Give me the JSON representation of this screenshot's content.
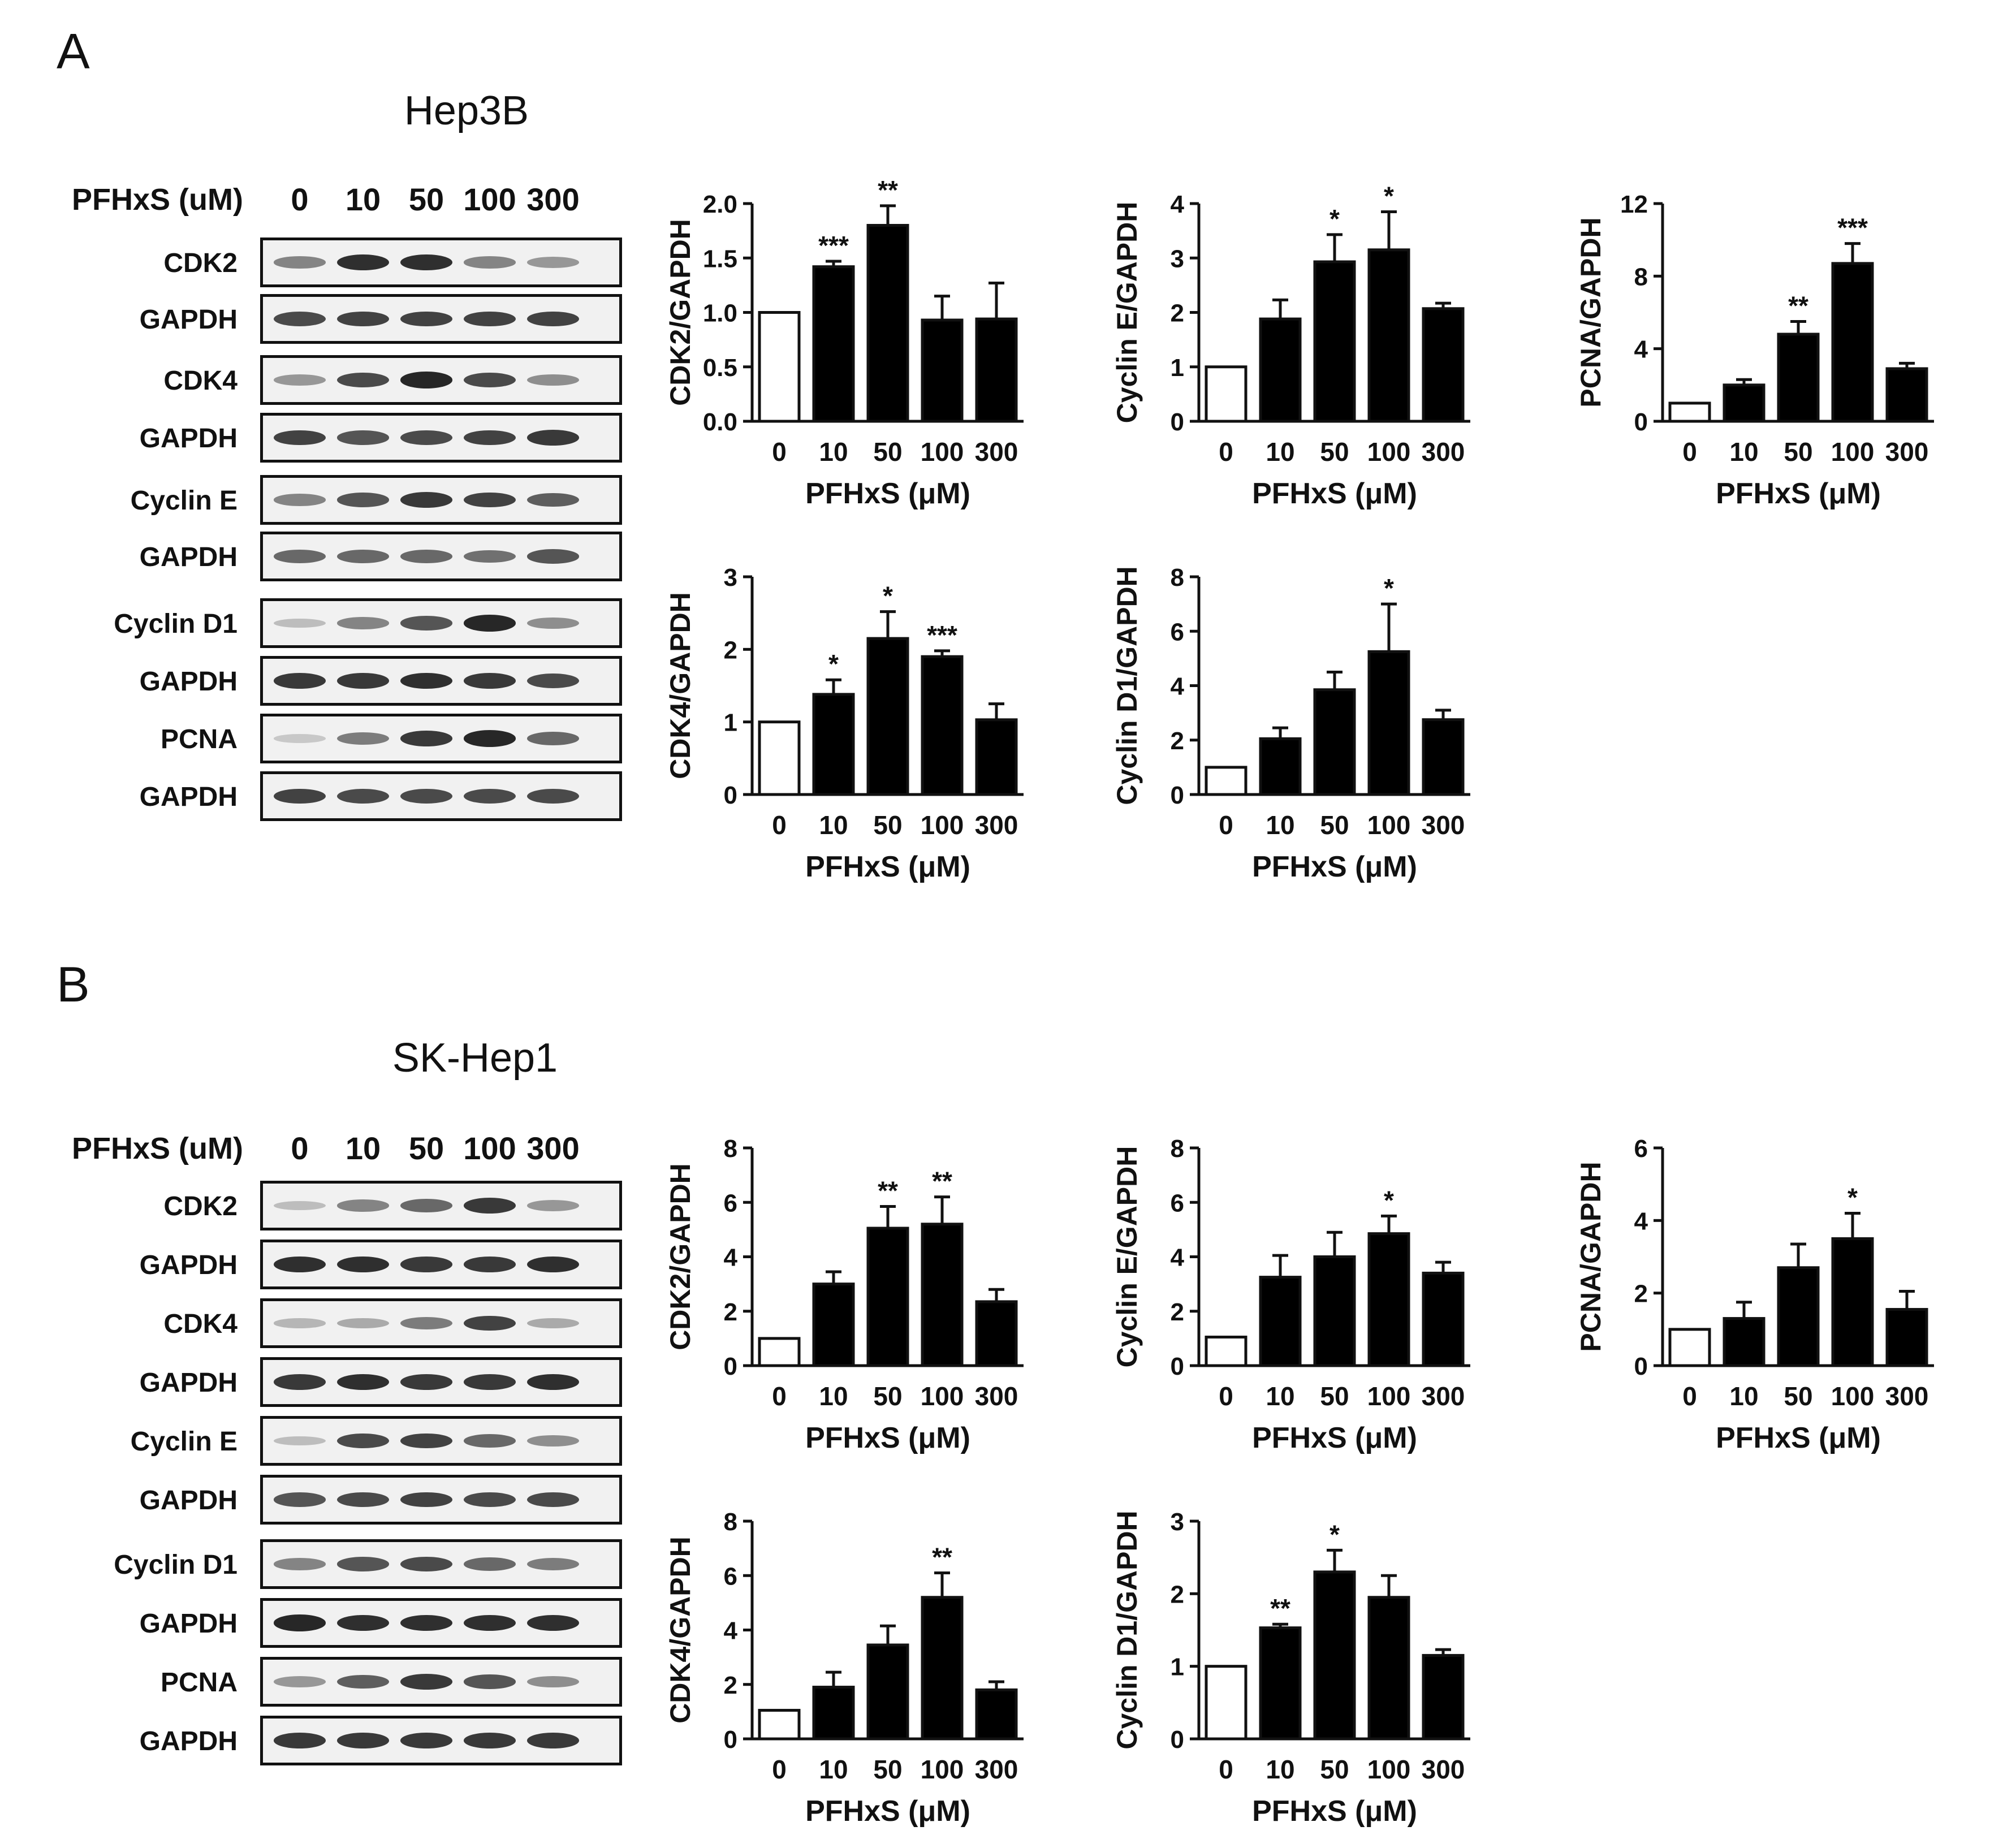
{
  "figure": {
    "panel_a": "A",
    "panel_b": "B"
  },
  "panels": [
    {
      "letter": "A",
      "cell_line": "Hep3B",
      "blot": {
        "dose_label": "PFHxS (uM)",
        "lanes": [
          "0",
          "10",
          "50",
          "100",
          "300"
        ],
        "bands": [
          {
            "label": "CDK2",
            "intensity": [
              0.45,
              0.9,
              0.9,
              0.45,
              0.35
            ]
          },
          {
            "label": "GAPDH",
            "intensity": [
              0.75,
              0.8,
              0.8,
              0.8,
              0.8
            ]
          },
          {
            "label": "CDK4",
            "intensity": [
              0.35,
              0.75,
              0.95,
              0.75,
              0.4
            ]
          },
          {
            "label": "GAPDH",
            "intensity": [
              0.8,
              0.7,
              0.75,
              0.8,
              0.85
            ]
          },
          {
            "label": "Cyclin E",
            "intensity": [
              0.45,
              0.7,
              0.85,
              0.8,
              0.65
            ]
          },
          {
            "label": "GAPDH",
            "intensity": [
              0.6,
              0.6,
              0.6,
              0.55,
              0.7
            ]
          },
          {
            "label": "Cyclin D1",
            "intensity": [
              0.15,
              0.45,
              0.7,
              0.95,
              0.4
            ]
          },
          {
            "label": "GAPDH",
            "intensity": [
              0.85,
              0.85,
              0.9,
              0.85,
              0.75
            ]
          },
          {
            "label": "PCNA",
            "intensity": [
              0.1,
              0.5,
              0.85,
              0.95,
              0.6
            ]
          },
          {
            "label": "GAPDH",
            "intensity": [
              0.8,
              0.75,
              0.75,
              0.75,
              0.75
            ]
          }
        ]
      }
    },
    {
      "letter": "B",
      "cell_line": "SK-Hep1",
      "blot": {
        "dose_label": "PFHxS (uM)",
        "lanes": [
          "0",
          "10",
          "50",
          "100",
          "300"
        ],
        "bands": [
          {
            "label": "CDK2",
            "intensity": [
              0.15,
              0.45,
              0.6,
              0.85,
              0.35
            ]
          },
          {
            "label": "GAPDH",
            "intensity": [
              0.9,
              0.9,
              0.85,
              0.85,
              0.9
            ]
          },
          {
            "label": "CDK4",
            "intensity": [
              0.2,
              0.25,
              0.5,
              0.8,
              0.25
            ]
          },
          {
            "label": "GAPDH",
            "intensity": [
              0.85,
              0.9,
              0.85,
              0.85,
              0.9
            ]
          },
          {
            "label": "Cyclin E",
            "intensity": [
              0.15,
              0.75,
              0.8,
              0.6,
              0.4
            ]
          },
          {
            "label": "GAPDH",
            "intensity": [
              0.7,
              0.75,
              0.8,
              0.75,
              0.75
            ]
          },
          {
            "label": "Cyclin D1",
            "intensity": [
              0.45,
              0.7,
              0.75,
              0.6,
              0.5
            ]
          },
          {
            "label": "GAPDH",
            "intensity": [
              0.95,
              0.9,
              0.9,
              0.9,
              0.9
            ]
          },
          {
            "label": "PCNA",
            "intensity": [
              0.35,
              0.65,
              0.85,
              0.7,
              0.4
            ]
          },
          {
            "label": "GAPDH",
            "intensity": [
              0.85,
              0.85,
              0.85,
              0.85,
              0.85
            ]
          }
        ]
      }
    }
  ],
  "chart_data": [
    {
      "id": "A_CDK2",
      "panel": "A",
      "type": "bar",
      "categories": [
        "0",
        "10",
        "50",
        "100",
        "300"
      ],
      "values": [
        1.0,
        1.42,
        1.8,
        0.93,
        0.94
      ],
      "errors": [
        0,
        0.05,
        0.18,
        0.22,
        0.33
      ],
      "significance": [
        "",
        "***",
        "**",
        "",
        ""
      ],
      "ylabel": "CDK2/GAPDH",
      "xlabel": "PFHxS (μM)",
      "ylim": [
        0,
        2.0
      ],
      "yticks": [
        "0.0",
        "0.5",
        "1.0",
        "1.5",
        "2.0"
      ],
      "control_color": "#ffffff",
      "treated_color": "#000000"
    },
    {
      "id": "A_CyclinE",
      "panel": "A",
      "type": "bar",
      "categories": [
        "0",
        "10",
        "50",
        "100",
        "300"
      ],
      "values": [
        1.0,
        1.88,
        2.93,
        3.15,
        2.07
      ],
      "errors": [
        0,
        0.35,
        0.5,
        0.7,
        0.1
      ],
      "significance": [
        "",
        "",
        "*",
        "*",
        ""
      ],
      "ylabel": "Cyclin E/GAPDH",
      "xlabel": "PFHxS (μM)",
      "ylim": [
        0,
        4
      ],
      "yticks": [
        "0",
        "1",
        "2",
        "3",
        "4"
      ],
      "control_color": "#ffffff",
      "treated_color": "#000000"
    },
    {
      "id": "A_PCNA",
      "panel": "A",
      "type": "bar",
      "categories": [
        "0",
        "10",
        "50",
        "100",
        "300"
      ],
      "values": [
        1.0,
        2.0,
        4.8,
        8.7,
        2.9
      ],
      "errors": [
        0,
        0.3,
        0.7,
        1.1,
        0.3
      ],
      "significance": [
        "",
        "",
        "**",
        "***",
        ""
      ],
      "ylabel": "PCNA/GAPDH",
      "xlabel": "PFHxS (μM)",
      "ylim": [
        0,
        12
      ],
      "yticks": [
        "0",
        "4",
        "8",
        "12"
      ],
      "control_color": "#ffffff",
      "treated_color": "#000000"
    },
    {
      "id": "A_CDK4",
      "panel": "A",
      "type": "bar",
      "categories": [
        "0",
        "10",
        "50",
        "100",
        "300"
      ],
      "values": [
        1.0,
        1.38,
        2.15,
        1.9,
        1.03
      ],
      "errors": [
        0,
        0.2,
        0.37,
        0.08,
        0.22
      ],
      "significance": [
        "",
        "*",
        "*",
        "***",
        ""
      ],
      "ylabel": "CDK4/GAPDH",
      "xlabel": "PFHxS (μM)",
      "ylim": [
        0,
        3
      ],
      "yticks": [
        "0",
        "1",
        "2",
        "3"
      ],
      "control_color": "#ffffff",
      "treated_color": "#000000"
    },
    {
      "id": "A_CyclinD1",
      "panel": "A",
      "type": "bar",
      "categories": [
        "0",
        "10",
        "50",
        "100",
        "300"
      ],
      "values": [
        1.0,
        2.05,
        3.85,
        5.25,
        2.75
      ],
      "errors": [
        0,
        0.4,
        0.65,
        1.75,
        0.35
      ],
      "significance": [
        "",
        "",
        "",
        "*",
        ""
      ],
      "ylabel": "Cyclin D1/GAPDH",
      "xlabel": "PFHxS (μM)",
      "ylim": [
        0,
        8
      ],
      "yticks": [
        "0",
        "2",
        "4",
        "6",
        "8"
      ],
      "control_color": "#ffffff",
      "treated_color": "#000000"
    },
    {
      "id": "B_CDK2",
      "panel": "B",
      "type": "bar",
      "categories": [
        "0",
        "10",
        "50",
        "100",
        "300"
      ],
      "values": [
        1.0,
        3.0,
        5.05,
        5.2,
        2.35
      ],
      "errors": [
        0,
        0.45,
        0.8,
        1.0,
        0.45
      ],
      "significance": [
        "",
        "",
        "**",
        "**",
        ""
      ],
      "ylabel": "CDK2/GAPDH",
      "xlabel": "PFHxS (μM)",
      "ylim": [
        0,
        8
      ],
      "yticks": [
        "0",
        "2",
        "4",
        "6",
        "8"
      ],
      "control_color": "#ffffff",
      "treated_color": "#000000"
    },
    {
      "id": "B_CyclinE",
      "panel": "B",
      "type": "bar",
      "categories": [
        "0",
        "10",
        "50",
        "100",
        "300"
      ],
      "values": [
        1.05,
        3.25,
        4.0,
        4.85,
        3.4
      ],
      "errors": [
        0,
        0.8,
        0.9,
        0.65,
        0.4
      ],
      "significance": [
        "",
        "",
        "",
        "*",
        ""
      ],
      "ylabel": "Cyclin E/GAPDH",
      "xlabel": "PFHxS (μM)",
      "ylim": [
        0,
        8
      ],
      "yticks": [
        "0",
        "2",
        "4",
        "6",
        "8"
      ],
      "control_color": "#ffffff",
      "treated_color": "#000000"
    },
    {
      "id": "B_PCNA",
      "panel": "B",
      "type": "bar",
      "categories": [
        "0",
        "10",
        "50",
        "100",
        "300"
      ],
      "values": [
        1.0,
        1.3,
        2.7,
        3.5,
        1.55
      ],
      "errors": [
        0,
        0.45,
        0.65,
        0.7,
        0.5
      ],
      "significance": [
        "",
        "",
        "",
        "*",
        ""
      ],
      "ylabel": "PCNA/GAPDH",
      "xlabel": "PFHxS (μM)",
      "ylim": [
        0,
        6
      ],
      "yticks": [
        "0",
        "2",
        "4",
        "6"
      ],
      "control_color": "#ffffff",
      "treated_color": "#000000"
    },
    {
      "id": "B_CDK4",
      "panel": "B",
      "type": "bar",
      "categories": [
        "0",
        "10",
        "50",
        "100",
        "300"
      ],
      "values": [
        1.05,
        1.9,
        3.45,
        5.2,
        1.8
      ],
      "errors": [
        0,
        0.55,
        0.7,
        0.9,
        0.3
      ],
      "significance": [
        "",
        "",
        "",
        "**",
        ""
      ],
      "ylabel": "CDK4/GAPDH",
      "xlabel": "PFHxS (μM)",
      "ylim": [
        0,
        8
      ],
      "yticks": [
        "0",
        "2",
        "4",
        "6",
        "8"
      ],
      "control_color": "#ffffff",
      "treated_color": "#000000"
    },
    {
      "id": "B_CyclinD1",
      "panel": "B",
      "type": "bar",
      "categories": [
        "0",
        "10",
        "50",
        "100",
        "300"
      ],
      "values": [
        1.0,
        1.53,
        2.3,
        1.95,
        1.15
      ],
      "errors": [
        0,
        0.05,
        0.3,
        0.3,
        0.08
      ],
      "significance": [
        "",
        "**",
        "*",
        "",
        ""
      ],
      "ylabel": "Cyclin D1/GAPDH",
      "xlabel": "PFHxS (μM)",
      "ylim": [
        0,
        3
      ],
      "yticks": [
        "0",
        "1",
        "2",
        "3"
      ],
      "control_color": "#ffffff",
      "treated_color": "#000000"
    }
  ]
}
